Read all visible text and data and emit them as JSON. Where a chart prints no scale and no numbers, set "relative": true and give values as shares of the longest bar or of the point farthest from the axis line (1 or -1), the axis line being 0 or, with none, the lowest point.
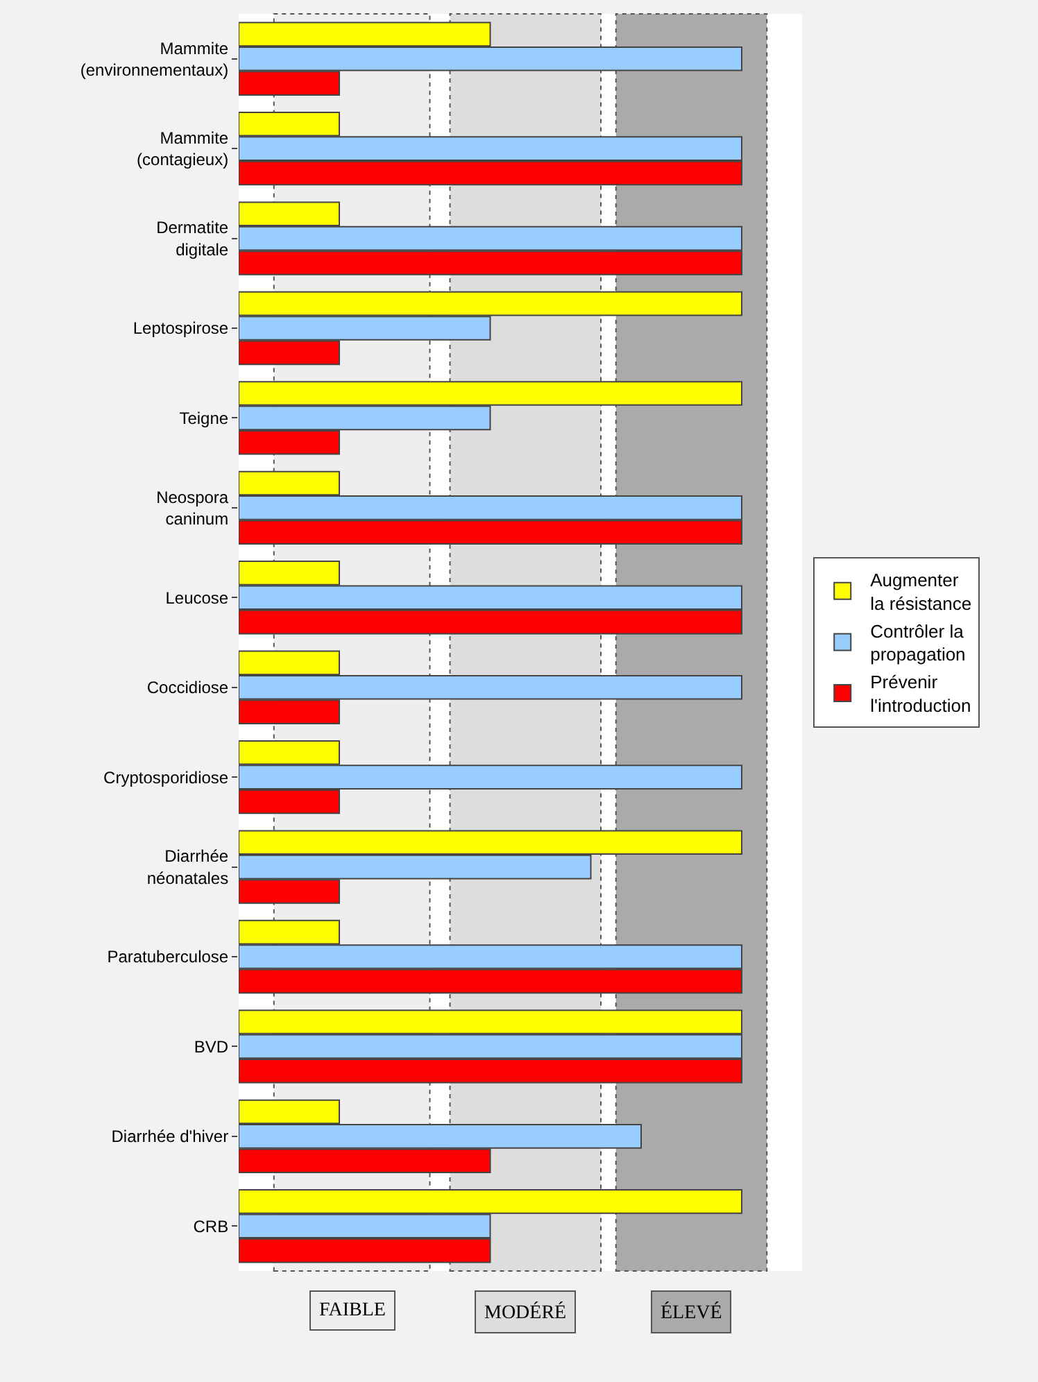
{
  "chart_data": {
    "type": "bar",
    "orientation": "horizontal",
    "relative": true,
    "legend": "right",
    "categories": [
      "Mammite\n(environnementaux)",
      "Mammite\n(contagieux)",
      "Dermatite\ndigitale",
      "Leptospirose",
      "Teigne",
      "Neospora\ncaninum",
      "Leucose",
      "Coccidiose",
      "Cryptosporidiose",
      "Diarrhée\nnéonatales",
      "Paratuberculose",
      "BVD",
      "Diarrhée d'hiver",
      "CRB"
    ],
    "series": [
      {
        "name": "Augmenter\nla résistance",
        "color": "#ffff00",
        "values": [
          0.5,
          0.2,
          0.2,
          1,
          1,
          0.2,
          0.2,
          0.2,
          0.2,
          1,
          0.2,
          1,
          0.2,
          1
        ]
      },
      {
        "name": "Contrôler la\npropagation",
        "color": "#99ccff",
        "values": [
          1,
          1,
          1,
          0.5,
          0.5,
          1,
          1,
          1,
          1,
          0.7,
          1,
          1,
          0.8,
          0.5
        ]
      },
      {
        "name": "Prévenir\nl'introduction",
        "color": "#ff0000",
        "values": [
          0.2,
          1,
          1,
          0.2,
          0.2,
          1,
          1,
          0.2,
          0.2,
          0.2,
          1,
          1,
          0.5,
          0.5
        ]
      }
    ],
    "bands": [
      {
        "axis": "x",
        "from": 0.07,
        "to": 0.38,
        "label": "FAIBLE",
        "color": "#eeeeee"
      },
      {
        "axis": "x",
        "from": 0.42,
        "to": 0.72,
        "label": "MODÉRÉ",
        "color": "#dddddd"
      },
      {
        "axis": "x",
        "from": 0.75,
        "to": 1.05,
        "label": "ÉLEVÉ",
        "color": "#aaaaaa"
      }
    ]
  }
}
